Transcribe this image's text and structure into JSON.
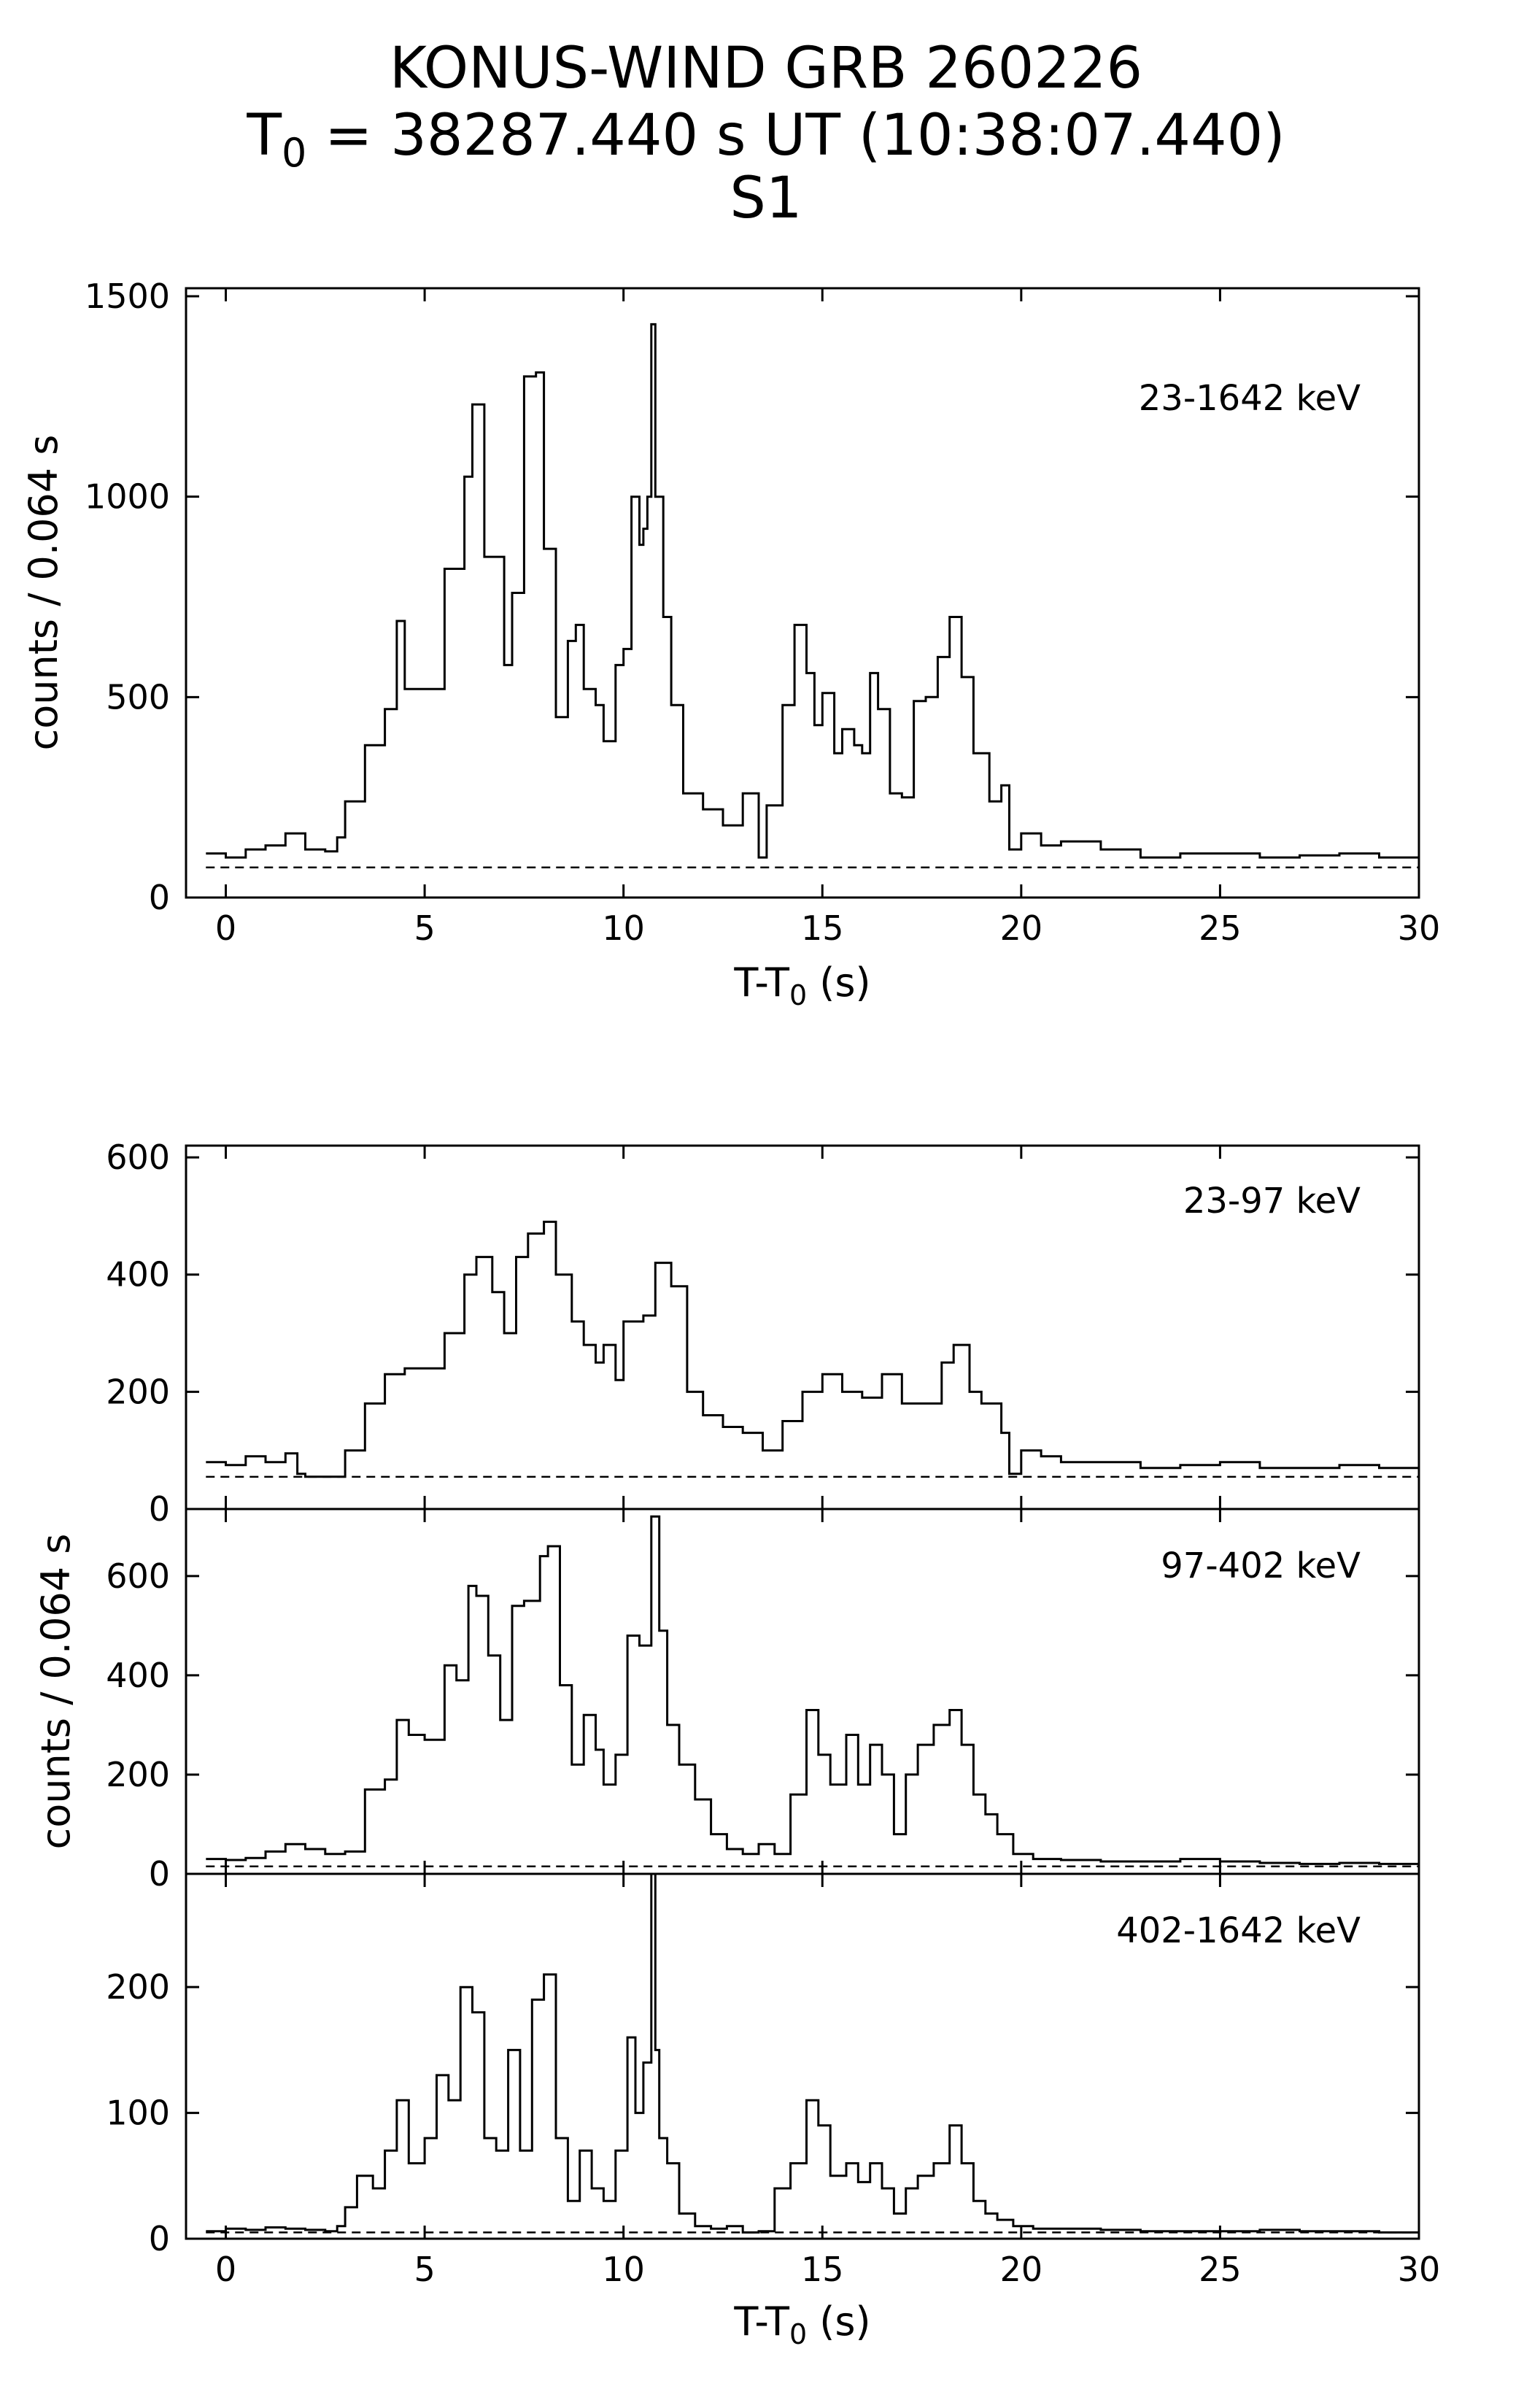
{
  "figure": {
    "title_line1": "KONUS-WIND GRB 260226",
    "title_line2_prefix": "T",
    "title_line2_sub": "0",
    "title_line2_rest": " = 38287.440 s UT (10:38:07.440)",
    "title_line3": "S1"
  },
  "colors": {
    "line": "#000000",
    "background": "#ffffff"
  },
  "chart_data": [
    {
      "type": "line",
      "panel": "top",
      "label": "23-1642 keV",
      "ylabel": "counts / 0.064 s",
      "xlabel_main": "T-T",
      "xlabel_sub": "0",
      "xlabel_end": " (s)",
      "xlim": [
        -1,
        30
      ],
      "ylim": [
        0,
        1520
      ],
      "yticks": [
        0,
        500,
        1000,
        1500
      ],
      "xticks": [
        0,
        5,
        10,
        15,
        20,
        25,
        30
      ],
      "background_level": 75,
      "x": [
        -0.5,
        0,
        0.5,
        1,
        1.5,
        2,
        2.5,
        2.8,
        3,
        3.5,
        4,
        4.3,
        4.5,
        5,
        5.5,
        5.8,
        6,
        6.2,
        6.5,
        7,
        7.2,
        7.5,
        7.8,
        8,
        8.3,
        8.6,
        8.8,
        9,
        9.3,
        9.5,
        9.8,
        10,
        10.2,
        10.4,
        10.5,
        10.6,
        10.7,
        10.8,
        11,
        11.2,
        11.5,
        12,
        12.5,
        13,
        13.4,
        13.6,
        14,
        14.3,
        14.6,
        14.8,
        15,
        15.3,
        15.5,
        15.8,
        16,
        16.2,
        16.4,
        16.7,
        17,
        17.3,
        17.6,
        17.9,
        18.2,
        18.5,
        18.8,
        19.2,
        19.5,
        19.7,
        20,
        20.5,
        21,
        22,
        23,
        24,
        25,
        26,
        27,
        28,
        29,
        30
      ],
      "y": [
        110,
        100,
        120,
        130,
        160,
        120,
        115,
        150,
        240,
        380,
        470,
        690,
        520,
        520,
        820,
        820,
        1050,
        1230,
        850,
        580,
        760,
        1300,
        1310,
        870,
        450,
        640,
        680,
        520,
        480,
        390,
        580,
        620,
        1000,
        880,
        920,
        1000,
        1430,
        1000,
        700,
        480,
        260,
        220,
        180,
        260,
        100,
        230,
        480,
        680,
        560,
        430,
        510,
        360,
        420,
        380,
        360,
        560,
        470,
        260,
        250,
        490,
        500,
        600,
        700,
        550,
        360,
        240,
        280,
        120,
        160,
        130,
        140,
        120,
        100,
        110,
        110,
        100,
        105,
        110,
        100,
        100
      ]
    },
    {
      "type": "line",
      "panel": "lower-1",
      "label": "23-97 keV",
      "ylabel": "counts / 0.064 s",
      "xlim": [
        -1,
        30
      ],
      "ylim": [
        0,
        620
      ],
      "yticks": [
        0,
        200,
        400,
        600
      ],
      "xticks": [
        0,
        5,
        10,
        15,
        20,
        25,
        30
      ],
      "background_level": 55,
      "x": [
        -0.5,
        0,
        0.5,
        1,
        1.5,
        1.8,
        2,
        2.5,
        3,
        3.5,
        4,
        4.5,
        5,
        5.5,
        6,
        6.3,
        6.7,
        7,
        7.3,
        7.6,
        8,
        8.3,
        8.7,
        9,
        9.3,
        9.5,
        9.8,
        10,
        10.5,
        10.8,
        11.2,
        11.6,
        12,
        12.5,
        13,
        13.5,
        14,
        14.5,
        15,
        15.5,
        16,
        16.5,
        17,
        17.5,
        18,
        18.3,
        18.7,
        19,
        19.5,
        19.7,
        20,
        20.5,
        21,
        22,
        23,
        24,
        25,
        26,
        27,
        28,
        29,
        30
      ],
      "y": [
        80,
        75,
        90,
        80,
        95,
        60,
        55,
        55,
        100,
        180,
        230,
        240,
        240,
        300,
        400,
        430,
        370,
        300,
        430,
        470,
        490,
        400,
        320,
        280,
        250,
        280,
        220,
        320,
        330,
        420,
        380,
        200,
        160,
        140,
        130,
        100,
        150,
        200,
        230,
        200,
        190,
        230,
        180,
        180,
        250,
        280,
        200,
        180,
        130,
        60,
        100,
        90,
        80,
        80,
        70,
        75,
        80,
        70,
        70,
        75,
        70,
        65
      ]
    },
    {
      "type": "line",
      "panel": "lower-2",
      "label": "97-402 keV",
      "xlim": [
        -1,
        30
      ],
      "ylim": [
        0,
        735
      ],
      "yticks": [
        0,
        200,
        400,
        600
      ],
      "xticks": [
        0,
        5,
        10,
        15,
        20,
        25,
        30
      ],
      "background_level": 15,
      "x": [
        -0.5,
        0,
        0.5,
        1,
        1.5,
        2,
        2.5,
        3,
        3.5,
        4,
        4.3,
        4.6,
        5,
        5.5,
        5.8,
        6.1,
        6.3,
        6.6,
        6.9,
        7.2,
        7.5,
        7.9,
        8.1,
        8.4,
        8.7,
        9,
        9.3,
        9.5,
        9.8,
        10.1,
        10.4,
        10.7,
        10.9,
        11.1,
        11.4,
        11.8,
        12.2,
        12.6,
        13,
        13.4,
        13.8,
        14.2,
        14.6,
        14.9,
        15.2,
        15.6,
        15.9,
        16.2,
        16.5,
        16.8,
        17.1,
        17.4,
        17.8,
        18.2,
        18.5,
        18.8,
        19.1,
        19.4,
        19.8,
        20.3,
        21,
        22,
        23,
        24,
        25,
        26,
        27,
        28,
        29,
        30
      ],
      "y": [
        30,
        28,
        32,
        45,
        60,
        50,
        40,
        45,
        170,
        190,
        310,
        280,
        270,
        420,
        390,
        580,
        560,
        440,
        310,
        540,
        550,
        640,
        660,
        380,
        220,
        320,
        250,
        180,
        240,
        480,
        460,
        720,
        490,
        300,
        220,
        150,
        80,
        50,
        40,
        60,
        40,
        160,
        330,
        240,
        180,
        280,
        180,
        260,
        200,
        80,
        200,
        260,
        300,
        330,
        260,
        160,
        120,
        80,
        40,
        30,
        28,
        25,
        25,
        30,
        25,
        22,
        20,
        22,
        20,
        18
      ]
    },
    {
      "type": "line",
      "panel": "lower-3",
      "label": "402-1642 keV",
      "xlabel_main": "T-T",
      "xlabel_sub": "0",
      "xlabel_end": " (s)",
      "xlim": [
        -1,
        30
      ],
      "ylim": [
        0,
        290
      ],
      "yticks": [
        0,
        100,
        200
      ],
      "xticks": [
        0,
        5,
        10,
        15,
        20,
        25,
        30
      ],
      "background_level": 5,
      "x": [
        -0.5,
        0,
        0.5,
        1,
        1.5,
        2,
        2.5,
        2.8,
        3,
        3.3,
        3.7,
        4,
        4.3,
        4.6,
        5,
        5.3,
        5.6,
        5.9,
        6.2,
        6.5,
        6.8,
        7.1,
        7.4,
        7.7,
        8,
        8.3,
        8.6,
        8.9,
        9.2,
        9.5,
        9.8,
        10.1,
        10.3,
        10.5,
        10.7,
        10.8,
        10.9,
        11.1,
        11.4,
        11.8,
        12.2,
        12.6,
        13,
        13.4,
        13.8,
        14.2,
        14.6,
        14.9,
        15.2,
        15.6,
        15.9,
        16.2,
        16.5,
        16.8,
        17.1,
        17.4,
        17.8,
        18.2,
        18.5,
        18.8,
        19.1,
        19.4,
        19.8,
        20.3,
        21,
        22,
        23,
        24,
        25,
        26,
        27,
        28,
        29,
        30
      ],
      "y": [
        6,
        8,
        7,
        9,
        8,
        7,
        6,
        10,
        25,
        50,
        40,
        70,
        110,
        60,
        80,
        130,
        110,
        200,
        180,
        80,
        70,
        150,
        70,
        190,
        210,
        80,
        30,
        70,
        40,
        30,
        70,
        160,
        100,
        140,
        290,
        150,
        80,
        60,
        20,
        10,
        8,
        10,
        5,
        6,
        40,
        60,
        110,
        90,
        50,
        60,
        45,
        60,
        40,
        20,
        40,
        50,
        60,
        90,
        60,
        30,
        20,
        15,
        10,
        8,
        8,
        7,
        6,
        6,
        6,
        7,
        6,
        6,
        5,
        6
      ]
    }
  ]
}
